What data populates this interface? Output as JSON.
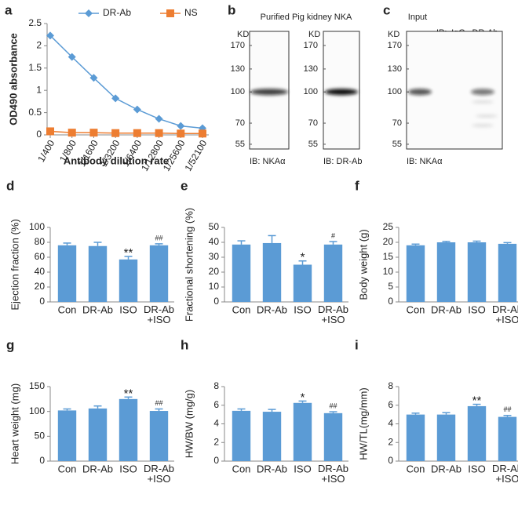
{
  "chart_data": [
    {
      "type": "line",
      "panel": "a",
      "ylabel": "OD490 absorbance",
      "xlabel": "Antibody dilution rate",
      "categories": [
        "1/400",
        "1/800",
        "1/1600",
        "1/3200",
        "1/6400",
        "1/12800",
        "1/25600",
        "1/52100"
      ],
      "series": [
        {
          "name": "DR-Ab",
          "color": "#5b9bd5",
          "marker": "diamond",
          "values": [
            2.23,
            1.75,
            1.28,
            0.82,
            0.57,
            0.36,
            0.2,
            0.15
          ]
        },
        {
          "name": "NS",
          "color": "#ed7d31",
          "marker": "square",
          "values": [
            0.08,
            0.05,
            0.05,
            0.04,
            0.04,
            0.04,
            0.03,
            0.03
          ]
        }
      ],
      "ylim": [
        0,
        2.5
      ],
      "yticks": [
        0,
        0.5,
        1,
        1.5,
        2,
        2.5
      ],
      "grid": false,
      "legend": "top"
    },
    {
      "type": "bar",
      "panel": "d",
      "ylabel": "Ejection fraction (%)",
      "categories": [
        "Con",
        "DR-Ab",
        "ISO",
        "DR-Ab\n+ISO"
      ],
      "values": [
        76,
        75,
        57,
        76
      ],
      "errors": [
        3,
        5,
        4,
        2
      ],
      "annotations": [
        null,
        null,
        "**",
        "##"
      ],
      "color": "#5b9bd5",
      "ylim": [
        0,
        100
      ],
      "yticks": [
        0,
        20,
        40,
        60,
        80,
        100
      ]
    },
    {
      "type": "bar",
      "panel": "e",
      "ylabel": "Fractional shortening (%)",
      "categories": [
        "Con",
        "DR-Ab",
        "ISO",
        "DR-Ab\n+ISO"
      ],
      "values": [
        38.5,
        39.5,
        25,
        38.5
      ],
      "errors": [
        2.5,
        5,
        2.5,
        2
      ],
      "annotations": [
        null,
        null,
        "*",
        "#"
      ],
      "color": "#5b9bd5",
      "ylim": [
        0,
        50
      ],
      "yticks": [
        0,
        10,
        20,
        30,
        40,
        50
      ]
    },
    {
      "type": "bar",
      "panel": "f",
      "ylabel": "Body weight (g)",
      "categories": [
        "Con",
        "DR-Ab",
        "ISO",
        "DR-Ab\n+ISO"
      ],
      "values": [
        19,
        20,
        20,
        19.5
      ],
      "errors": [
        0.4,
        0.3,
        0.4,
        0.4
      ],
      "annotations": [
        null,
        null,
        null,
        null
      ],
      "color": "#5b9bd5",
      "ylim": [
        0,
        25
      ],
      "yticks": [
        0,
        5,
        10,
        15,
        20,
        25
      ]
    },
    {
      "type": "bar",
      "panel": "g",
      "ylabel": "Heart weight (mg)",
      "categories": [
        "Con",
        "DR-Ab",
        "ISO",
        "DR-Ab\n+ISO"
      ],
      "values": [
        102,
        106,
        125,
        101
      ],
      "errors": [
        3,
        5,
        4,
        4
      ],
      "annotations": [
        null,
        null,
        "**",
        "##"
      ],
      "color": "#5b9bd5",
      "ylim": [
        0,
        150
      ],
      "yticks": [
        0,
        50,
        100,
        150
      ]
    },
    {
      "type": "bar",
      "panel": "h",
      "ylabel": "HW/BW (mg/g)",
      "categories": [
        "Con",
        "DR-Ab",
        "ISO",
        "DR-Ab\n+ISO"
      ],
      "values": [
        5.4,
        5.3,
        6.25,
        5.15
      ],
      "errors": [
        0.2,
        0.25,
        0.2,
        0.15
      ],
      "annotations": [
        null,
        null,
        "*",
        "##"
      ],
      "color": "#5b9bd5",
      "ylim": [
        0,
        8
      ],
      "yticks": [
        0,
        2,
        4,
        6,
        8
      ]
    },
    {
      "type": "bar",
      "panel": "i",
      "ylabel": "HW/TL(mg/mm)",
      "categories": [
        "Con",
        "DR-Ab",
        "ISO",
        "DR-Ab\n+ISO"
      ],
      "values": [
        5.0,
        5.0,
        5.9,
        4.75
      ],
      "errors": [
        0.15,
        0.2,
        0.2,
        0.15
      ],
      "annotations": [
        null,
        null,
        "**",
        "##"
      ],
      "color": "#5b9bd5",
      "ylim": [
        0,
        8
      ],
      "yticks": [
        0,
        2,
        4,
        6,
        8
      ]
    }
  ],
  "blots": [
    {
      "panel": "b",
      "title": "Purified Pig kidney NKA",
      "membranes": [
        {
          "unit": "KD",
          "markers": [
            170,
            130,
            100,
            70,
            55
          ],
          "probe": "IB: NKAα"
        },
        {
          "unit": "KD",
          "markers": [
            170,
            130,
            100,
            70,
            55
          ],
          "probe": "IB: DR-Ab"
        }
      ]
    },
    {
      "panel": "c",
      "title": "Input",
      "lanes_label": "IP:",
      "lanes": [
        "IgG",
        "DR-Ab"
      ],
      "membranes": [
        {
          "unit": "KD",
          "markers": [
            170,
            130,
            100,
            70,
            55
          ],
          "probe": "IB: NKAα"
        }
      ]
    }
  ]
}
